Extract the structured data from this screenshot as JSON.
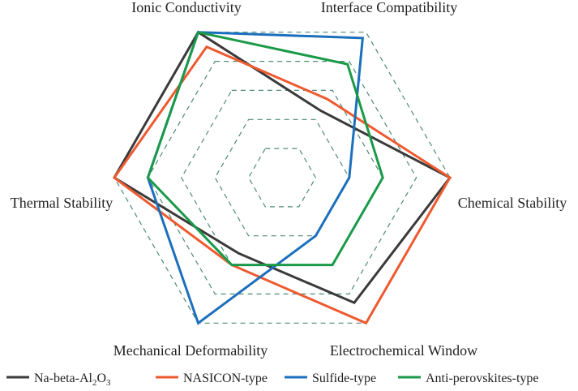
{
  "chart_data": {
    "type": "radar",
    "axes": [
      "Ionic Conductivity",
      "Interface Compatibility",
      "Chemical Stability",
      "Electrochemical Window",
      "Mechanical Deformability",
      "Thermal Stability"
    ],
    "levels": 5,
    "range": [
      0,
      5
    ],
    "grid": "dashed hexagons",
    "legend_position": "bottom",
    "series": [
      {
        "name": "Na-beta-Al",
        "name_parts": [
          "Na-beta-Al",
          "2",
          "O",
          "3"
        ],
        "color": "#3a3a3a",
        "values": [
          5,
          2.3,
          5,
          4.3,
          2.6,
          5
        ]
      },
      {
        "name": "NASICON-type",
        "color": "#ee5a2f",
        "values": [
          4.5,
          2.7,
          5,
          5,
          3,
          5
        ]
      },
      {
        "name": "Sulfide-type",
        "color": "#1c6fbd",
        "values": [
          5,
          4.8,
          2,
          2,
          5,
          4
        ]
      },
      {
        "name": "Anti-perovskites-type",
        "color": "#1a9a49",
        "values": [
          5,
          3.9,
          3,
          3,
          3,
          4
        ]
      }
    ],
    "grid_color": "#4f8a7a"
  }
}
